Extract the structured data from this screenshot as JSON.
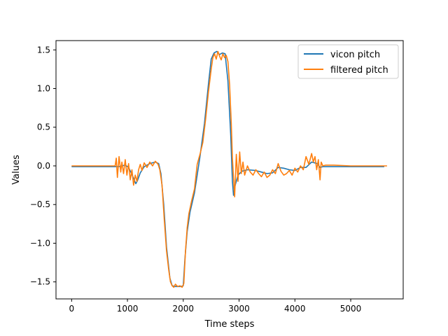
{
  "chart_data": {
    "type": "line",
    "title": "",
    "xlabel": "Time steps",
    "ylabel": "Values",
    "xlim": [
      -280,
      5940
    ],
    "ylim": [
      -1.72,
      1.62
    ],
    "xticks": [
      0,
      1000,
      2000,
      3000,
      4000,
      5000
    ],
    "yticks": [
      -1.5,
      -1.0,
      -0.5,
      0.0,
      0.5,
      1.0,
      1.5
    ],
    "xtick_labels": [
      "0",
      "1000",
      "2000",
      "3000",
      "4000",
      "5000"
    ],
    "ytick_labels": [
      "−1.5",
      "−1.0",
      "−0.5",
      "0.0",
      "0.5",
      "1.0",
      "1.5"
    ],
    "grid": false,
    "legend_position": "top-right",
    "series": [
      {
        "name": "vicon pitch",
        "color": "#1f77b4",
        "x": [
          0,
          500,
          790,
          840,
          900,
          960,
          1020,
          1060,
          1110,
          1150,
          1180,
          1230,
          1300,
          1400,
          1500,
          1560,
          1600,
          1650,
          1700,
          1760,
          1800,
          1850,
          1900,
          1960,
          2000,
          2030,
          2070,
          2120,
          2200,
          2300,
          2380,
          2450,
          2500,
          2550,
          2600,
          2650,
          2700,
          2750,
          2800,
          2850,
          2880,
          2900,
          2930,
          2980,
          3050,
          3150,
          3300,
          3400,
          3500,
          3600,
          3700,
          3800,
          3900,
          4000,
          4100,
          4200,
          4300,
          4400,
          4450,
          4500,
          4550,
          4700,
          5000,
          5300,
          5600
        ],
        "values": [
          -0.01,
          -0.01,
          -0.01,
          -0.01,
          0.0,
          0.01,
          -0.02,
          -0.08,
          -0.16,
          -0.23,
          -0.19,
          -0.09,
          -0.01,
          0.03,
          0.05,
          0.03,
          -0.1,
          -0.5,
          -1.05,
          -1.45,
          -1.55,
          -1.56,
          -1.56,
          -1.56,
          -1.55,
          -1.2,
          -0.85,
          -0.6,
          -0.35,
          0.12,
          0.55,
          1.05,
          1.38,
          1.46,
          1.48,
          1.44,
          1.46,
          1.45,
          1.1,
          0.4,
          -0.2,
          -0.38,
          -0.25,
          -0.12,
          -0.07,
          -0.05,
          -0.06,
          -0.08,
          -0.1,
          -0.09,
          -0.02,
          -0.03,
          -0.05,
          -0.06,
          -0.02,
          -0.02,
          0.05,
          0.03,
          -0.02,
          -0.01,
          -0.01,
          -0.01,
          -0.01,
          -0.01,
          -0.01
        ]
      },
      {
        "name": "filtered pitch",
        "color": "#ff7f0e",
        "x": [
          0,
          500,
          780,
          800,
          820,
          850,
          880,
          900,
          930,
          960,
          990,
          1020,
          1050,
          1080,
          1110,
          1140,
          1170,
          1200,
          1230,
          1260,
          1300,
          1350,
          1400,
          1450,
          1500,
          1550,
          1580,
          1620,
          1660,
          1700,
          1740,
          1770,
          1800,
          1830,
          1860,
          1900,
          1940,
          1980,
          2010,
          2040,
          2070,
          2100,
          2150,
          2200,
          2250,
          2300,
          2350,
          2400,
          2450,
          2500,
          2530,
          2560,
          2590,
          2620,
          2650,
          2680,
          2710,
          2740,
          2770,
          2800,
          2830,
          2860,
          2880,
          2900,
          2920,
          2950,
          2980,
          3010,
          3040,
          3070,
          3100,
          3150,
          3200,
          3250,
          3300,
          3350,
          3400,
          3450,
          3500,
          3550,
          3600,
          3650,
          3700,
          3750,
          3800,
          3850,
          3900,
          3950,
          4000,
          4050,
          4100,
          4150,
          4200,
          4250,
          4300,
          4330,
          4360,
          4390,
          4420,
          4450,
          4470,
          4500,
          4550,
          4700,
          5000,
          5300,
          5650
        ],
        "values": [
          0.0,
          0.0,
          0.0,
          0.1,
          -0.15,
          0.12,
          -0.08,
          0.05,
          -0.1,
          0.08,
          -0.12,
          0.03,
          -0.18,
          -0.05,
          -0.25,
          -0.12,
          -0.2,
          -0.05,
          0.02,
          -0.06,
          0.04,
          -0.02,
          0.05,
          0.0,
          0.06,
          0.02,
          -0.05,
          -0.25,
          -0.7,
          -1.1,
          -1.35,
          -1.5,
          -1.55,
          -1.57,
          -1.53,
          -1.56,
          -1.55,
          -1.57,
          -1.52,
          -1.1,
          -0.8,
          -0.62,
          -0.45,
          -0.3,
          0.02,
          0.15,
          0.3,
          0.6,
          0.95,
          1.25,
          1.4,
          1.45,
          1.38,
          1.48,
          1.42,
          1.37,
          1.45,
          1.4,
          1.43,
          1.35,
          1.05,
          0.55,
          0.1,
          -0.15,
          -0.4,
          0.15,
          -0.2,
          0.18,
          -0.1,
          0.05,
          -0.12,
          0.0,
          -0.08,
          -0.12,
          -0.05,
          -0.1,
          -0.14,
          -0.08,
          -0.15,
          -0.12,
          -0.05,
          -0.1,
          0.03,
          -0.07,
          -0.12,
          -0.1,
          -0.06,
          -0.12,
          -0.03,
          -0.08,
          0.0,
          -0.05,
          0.12,
          0.02,
          0.16,
          0.05,
          0.12,
          -0.05,
          0.08,
          -0.18,
          0.05,
          0.0,
          0.01,
          0.01,
          0.0,
          0.0,
          0.0
        ]
      }
    ]
  }
}
